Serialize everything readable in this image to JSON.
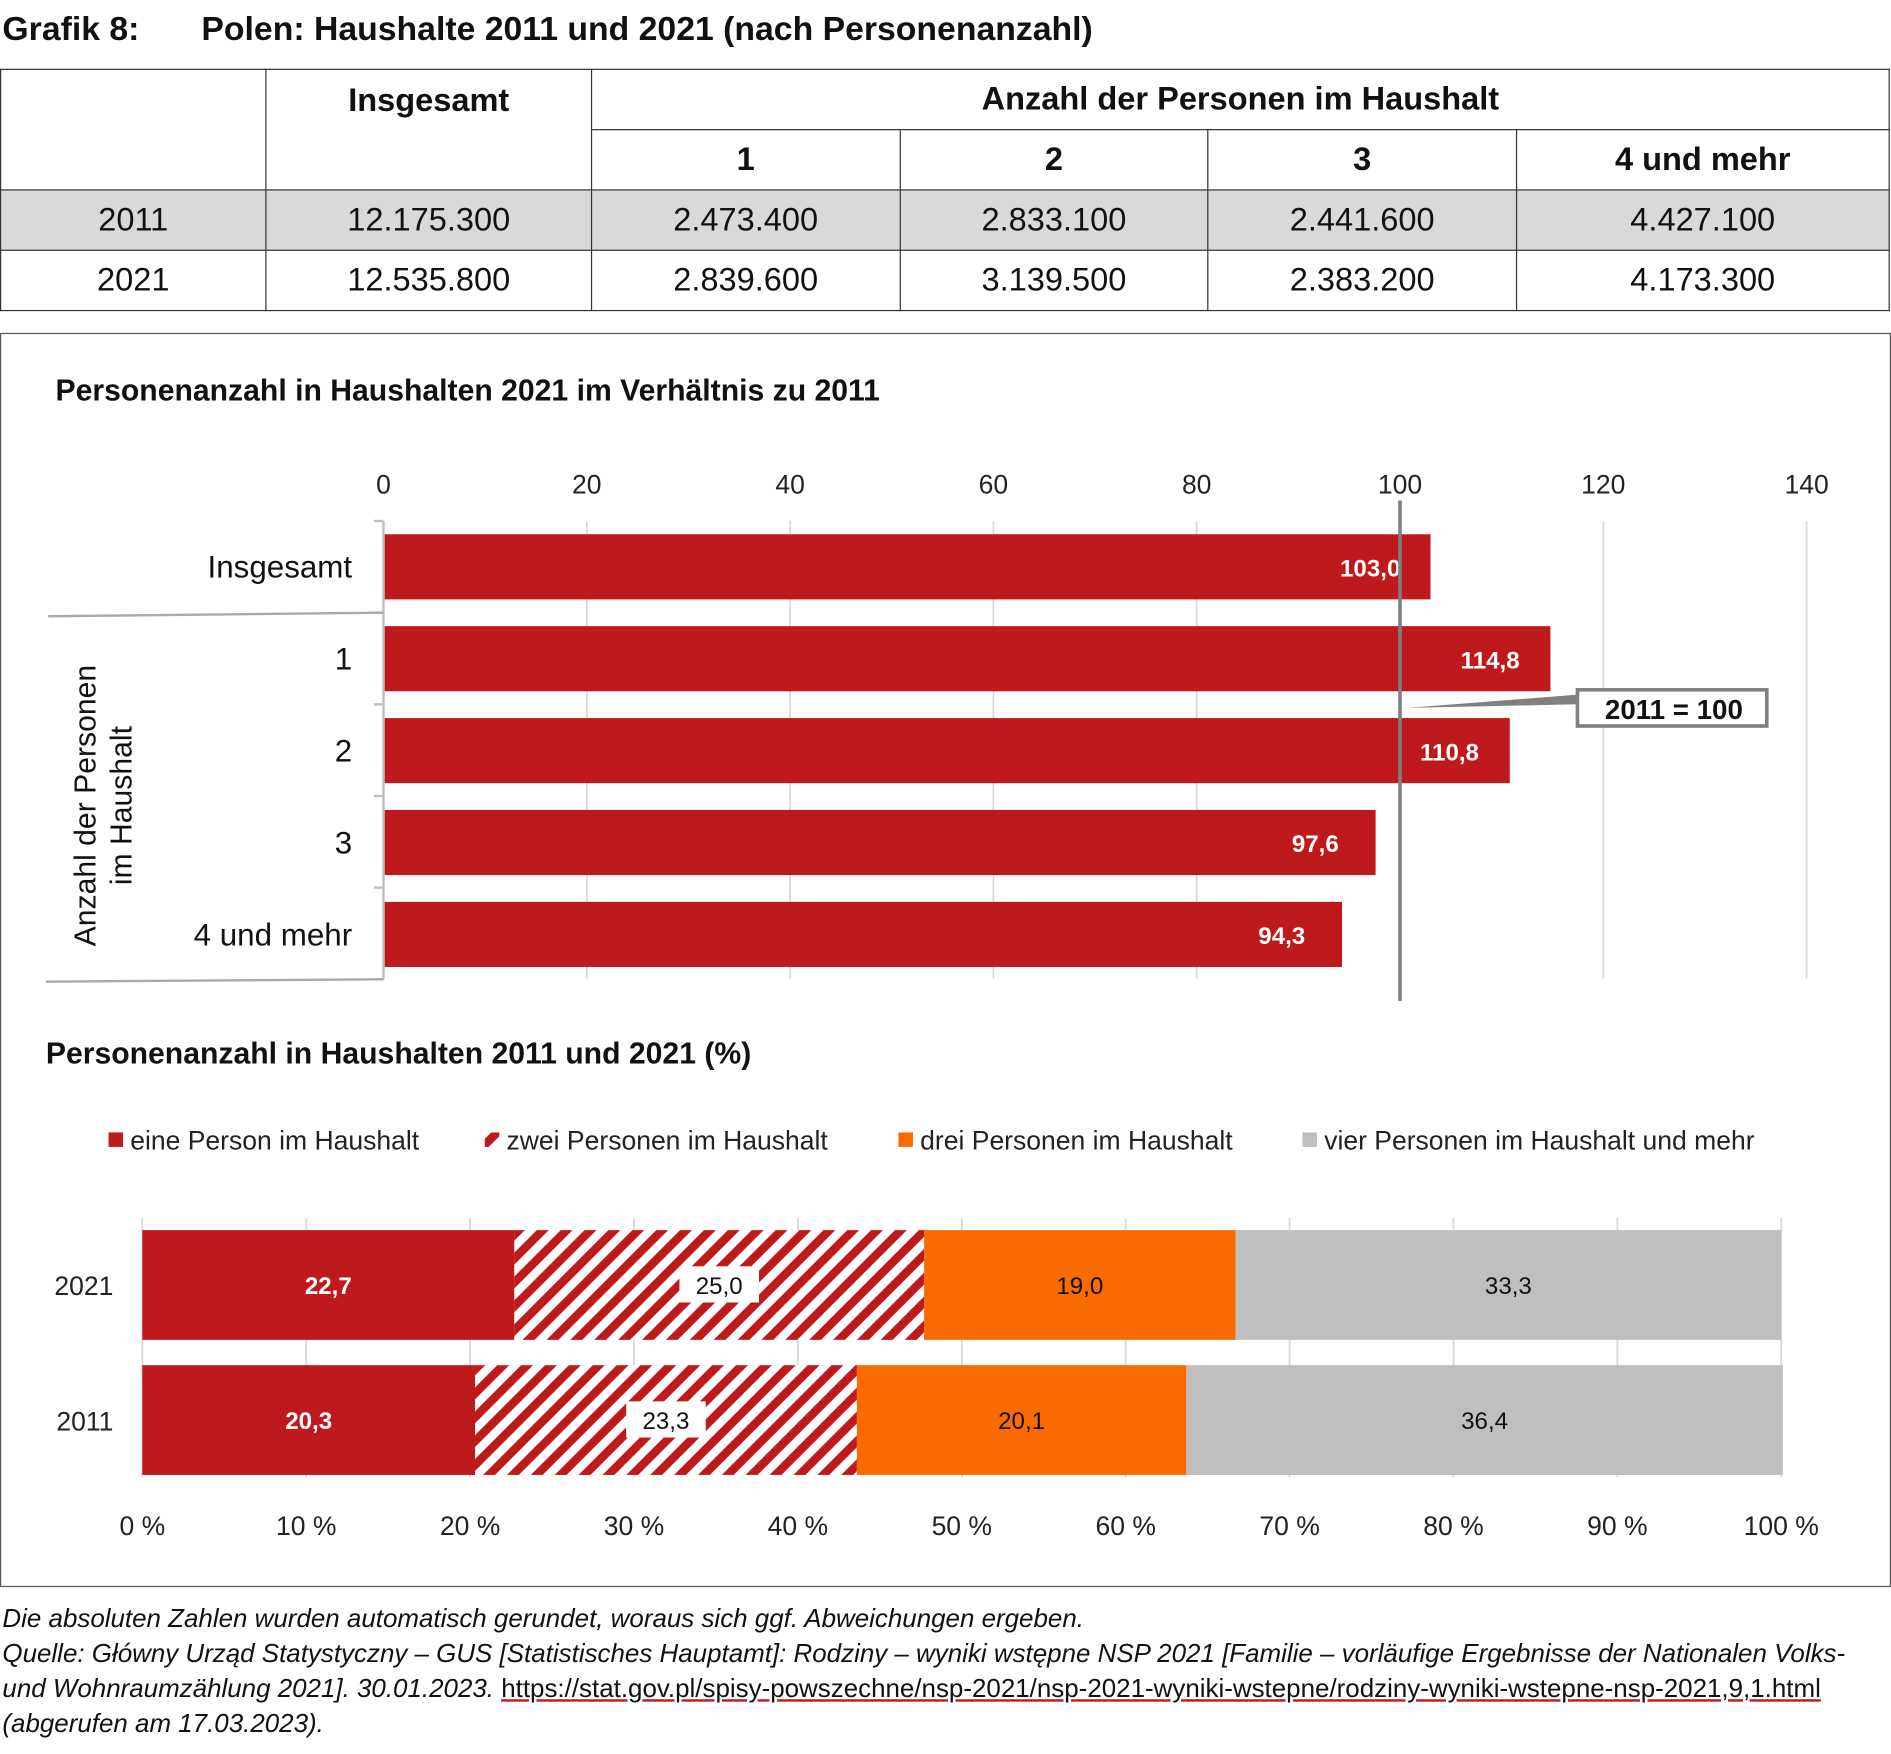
{
  "title": {
    "number": "Grafik 8:",
    "text": "Polen: Haushalte 2011 und 2021 (nach Personenanzahl)"
  },
  "table": {
    "headers": {
      "total": "Insgesamt",
      "group": "Anzahl der Personen im Haushalt",
      "cols": [
        "1",
        "2",
        "3",
        "4 und mehr"
      ]
    },
    "rows": [
      {
        "year": "2011",
        "total": "12.175.300",
        "values": [
          "2.473.400",
          "2.833.100",
          "2.441.600",
          "4.427.100"
        ]
      },
      {
        "year": "2021",
        "total": "12.535.800",
        "values": [
          "2.839.600",
          "3.139.500",
          "2.383.200",
          "4.173.300"
        ]
      }
    ]
  },
  "chart_data": [
    {
      "type": "bar",
      "orientation": "horizontal",
      "title": "Personenanzahl in Haushalten 2021 im Verhältnis zu 2011",
      "categories": [
        "Insgesamt",
        "1",
        "2",
        "3",
        "4 und mehr"
      ],
      "values": [
        103.0,
        114.8,
        110.8,
        97.6,
        94.3
      ],
      "labels": [
        "103,0",
        "114,8",
        "110,8",
        "97,6",
        "94,3"
      ],
      "group_label": "Anzahl der Personen im Haushalt",
      "group_label_lines": [
        "Anzahl der Personen",
        "im Haushalt"
      ],
      "xlim": [
        0,
        140
      ],
      "xticks": [
        "0",
        "20",
        "40",
        "60",
        "80",
        "100",
        "120",
        "140"
      ],
      "reference_line": 100,
      "annotation": "2011 = 100",
      "grid": true,
      "color": "#be1a1d"
    },
    {
      "type": "bar",
      "orientation": "horizontal",
      "stacked": true,
      "title": "Personenanzahl in Haushalten 2011 und 2021 (%)",
      "categories": [
        "2021",
        "2011"
      ],
      "series": [
        {
          "name": "eine Person im Haushalt",
          "values": [
            22.7,
            20.3
          ],
          "labels": [
            "22,7",
            "20,3"
          ],
          "color": "#be1a1d",
          "pattern": "solid"
        },
        {
          "name": "zwei Personen im Haushalt",
          "values": [
            25.0,
            23.3
          ],
          "labels": [
            "25,0",
            "23,3"
          ],
          "color": "#be1a1d",
          "pattern": "hatched"
        },
        {
          "name": "drei Personen im Haushalt",
          "values": [
            19.0,
            20.1
          ],
          "labels": [
            "19,0",
            "20,1"
          ],
          "color": "#f96a00",
          "pattern": "solid"
        },
        {
          "name": "vier Personen im Haushalt und mehr",
          "values": [
            33.3,
            36.4
          ],
          "labels": [
            "33,3",
            "36,4"
          ],
          "color": "#bfbfbf",
          "pattern": "solid"
        }
      ],
      "xlim": [
        0,
        100
      ],
      "xticks": [
        "0 %",
        "10 %",
        "20 %",
        "30 %",
        "40 %",
        "50 %",
        "60 %",
        "70 %",
        "80 %",
        "90 %",
        "100 %"
      ],
      "legend": "top",
      "grid": true
    }
  ],
  "notes": {
    "line1": "Die absoluten Zahlen wurden automatisch gerundet, woraus sich ggf. Abweichungen ergeben.",
    "source_prefix": "Quelle: Główny Urząd Statystyczny – GUS [Statistisches Hauptamt]: Rodziny – wyniki wstępne NSP 2021 [Familie – vorläufige Ergebnisse der Nationalen Volks- und Wohnraumzählung 2021]. 30.01.2023. ",
    "link": "https://stat.gov.pl/spisy-powszechne/nsp-2021/nsp-2021-wyniki-wstepne/rodziny-wyniki-wstepne-nsp-2021,9,1.html",
    "source_suffix": " (abgerufen am 17.03.2023)."
  }
}
